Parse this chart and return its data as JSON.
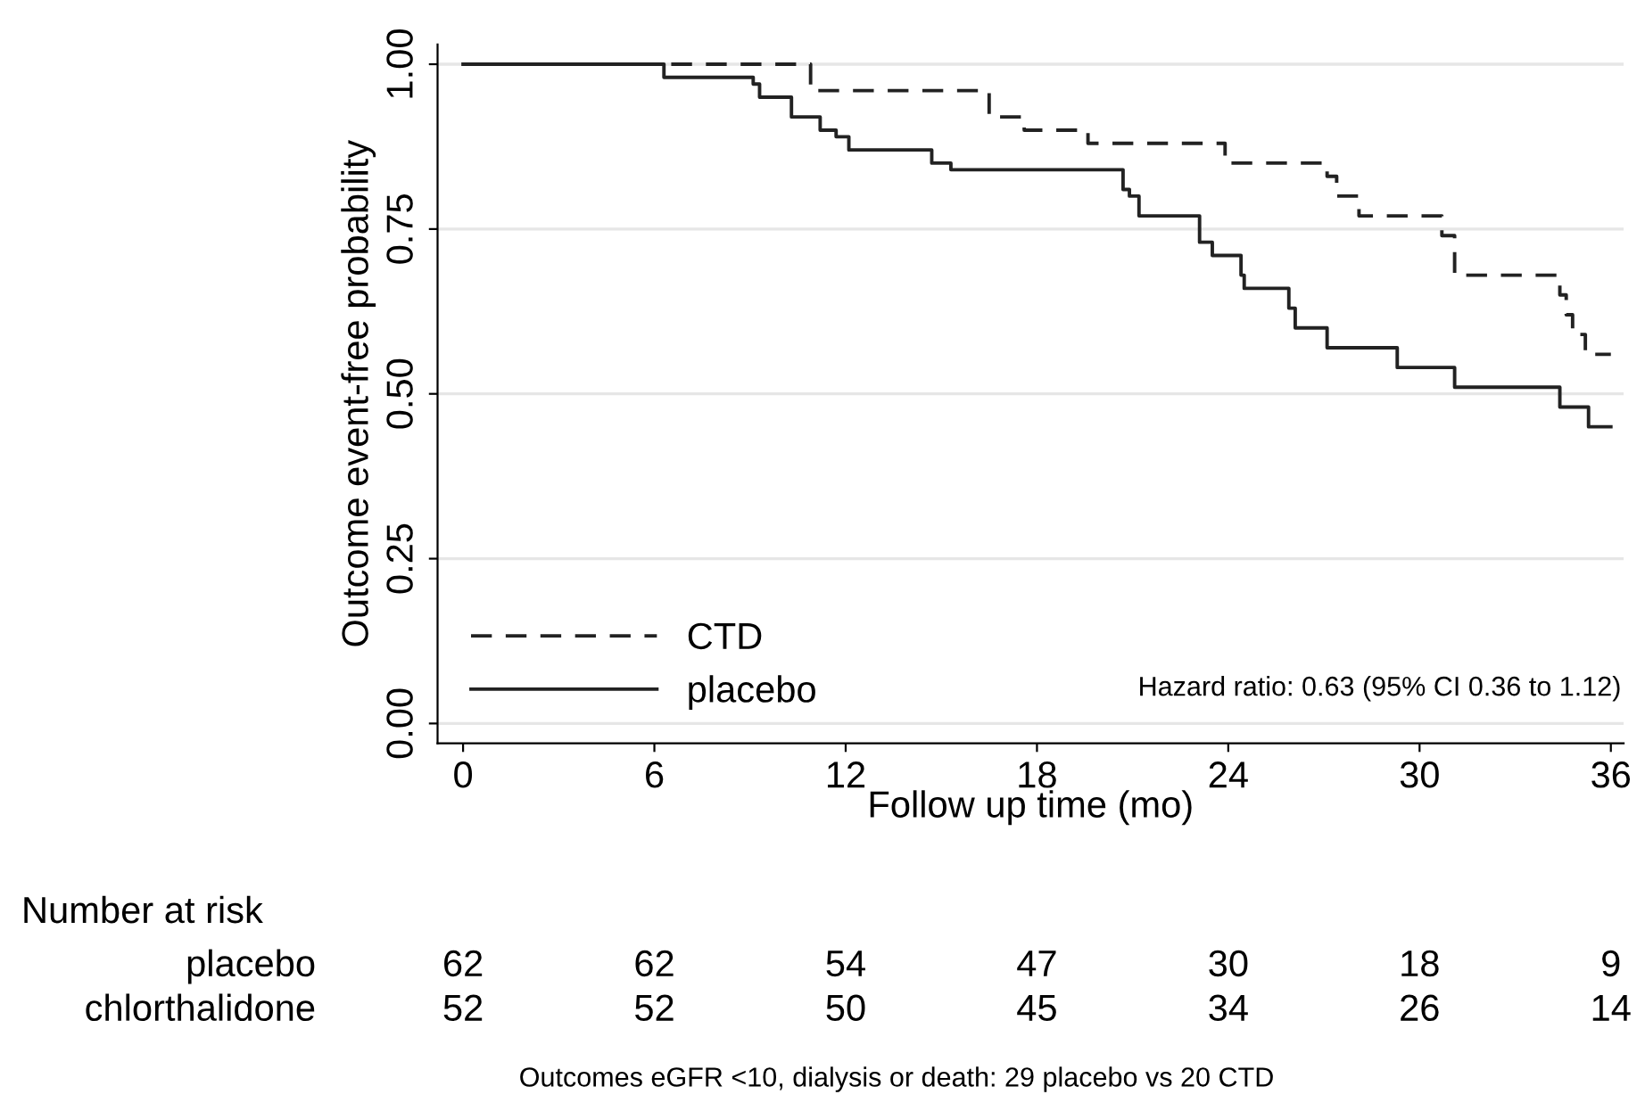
{
  "chart_data": {
    "type": "step",
    "xlabel": "Follow up time (mo)",
    "ylabel": "Outcome event-free probability",
    "xlim": [
      -0.8,
      36.4
    ],
    "ylim": [
      -0.03,
      1.03
    ],
    "xticks": [
      0,
      6,
      12,
      18,
      24,
      30,
      36
    ],
    "yticks": [
      {
        "value": 0,
        "label": "0.00"
      },
      {
        "value": 0.25,
        "label": "0.25"
      },
      {
        "value": 0.5,
        "label": "0.50"
      },
      {
        "value": 0.75,
        "label": "0.75"
      },
      {
        "value": 1,
        "label": "1.00"
      }
    ],
    "grid": "y",
    "legend": "bottom left",
    "series": [
      {
        "name": "CTD",
        "color": "#222222",
        "line_style": "dashed",
        "x": [
          0,
          10.9,
          16.5,
          17.6,
          19.6,
          23.9,
          27.1,
          27.4,
          28.1,
          30.7,
          31.1,
          34.4,
          34.6,
          34.8,
          35.2,
          36.0
        ],
        "values": [
          1.0,
          0.96,
          0.92,
          0.9,
          0.88,
          0.85,
          0.83,
          0.8,
          0.77,
          0.74,
          0.68,
          0.65,
          0.62,
          0.59,
          0.56,
          0.56
        ]
      },
      {
        "name": "placebo",
        "color": "#222222",
        "line_style": "solid",
        "x": [
          0,
          6.3,
          9.1,
          9.3,
          10.3,
          11.2,
          11.7,
          12.1,
          14.7,
          15.3,
          20.7,
          20.9,
          21.2,
          23.1,
          23.5,
          24.4,
          24.5,
          25.9,
          26.1,
          27.1,
          29.3,
          31.1,
          34.4,
          35.3,
          36.0
        ],
        "values": [
          1.0,
          0.98,
          0.97,
          0.95,
          0.92,
          0.9,
          0.89,
          0.87,
          0.85,
          0.84,
          0.81,
          0.8,
          0.77,
          0.73,
          0.71,
          0.68,
          0.66,
          0.63,
          0.6,
          0.57,
          0.54,
          0.51,
          0.48,
          0.45,
          0.45
        ]
      }
    ],
    "annotations": [
      "Hazard ratio: 0.63 (95% CI 0.36 to 1.12)",
      "Number at risk",
      "placebo",
      "chlorthalidone",
      "62",
      "62",
      "54",
      "47",
      "30",
      "18",
      "9",
      "52",
      "52",
      "50",
      "45",
      "34",
      "26",
      "14",
      "Outcomes eGFR <10, dialysis or death: 29 placebo vs 20 CTD"
    ]
  }
}
